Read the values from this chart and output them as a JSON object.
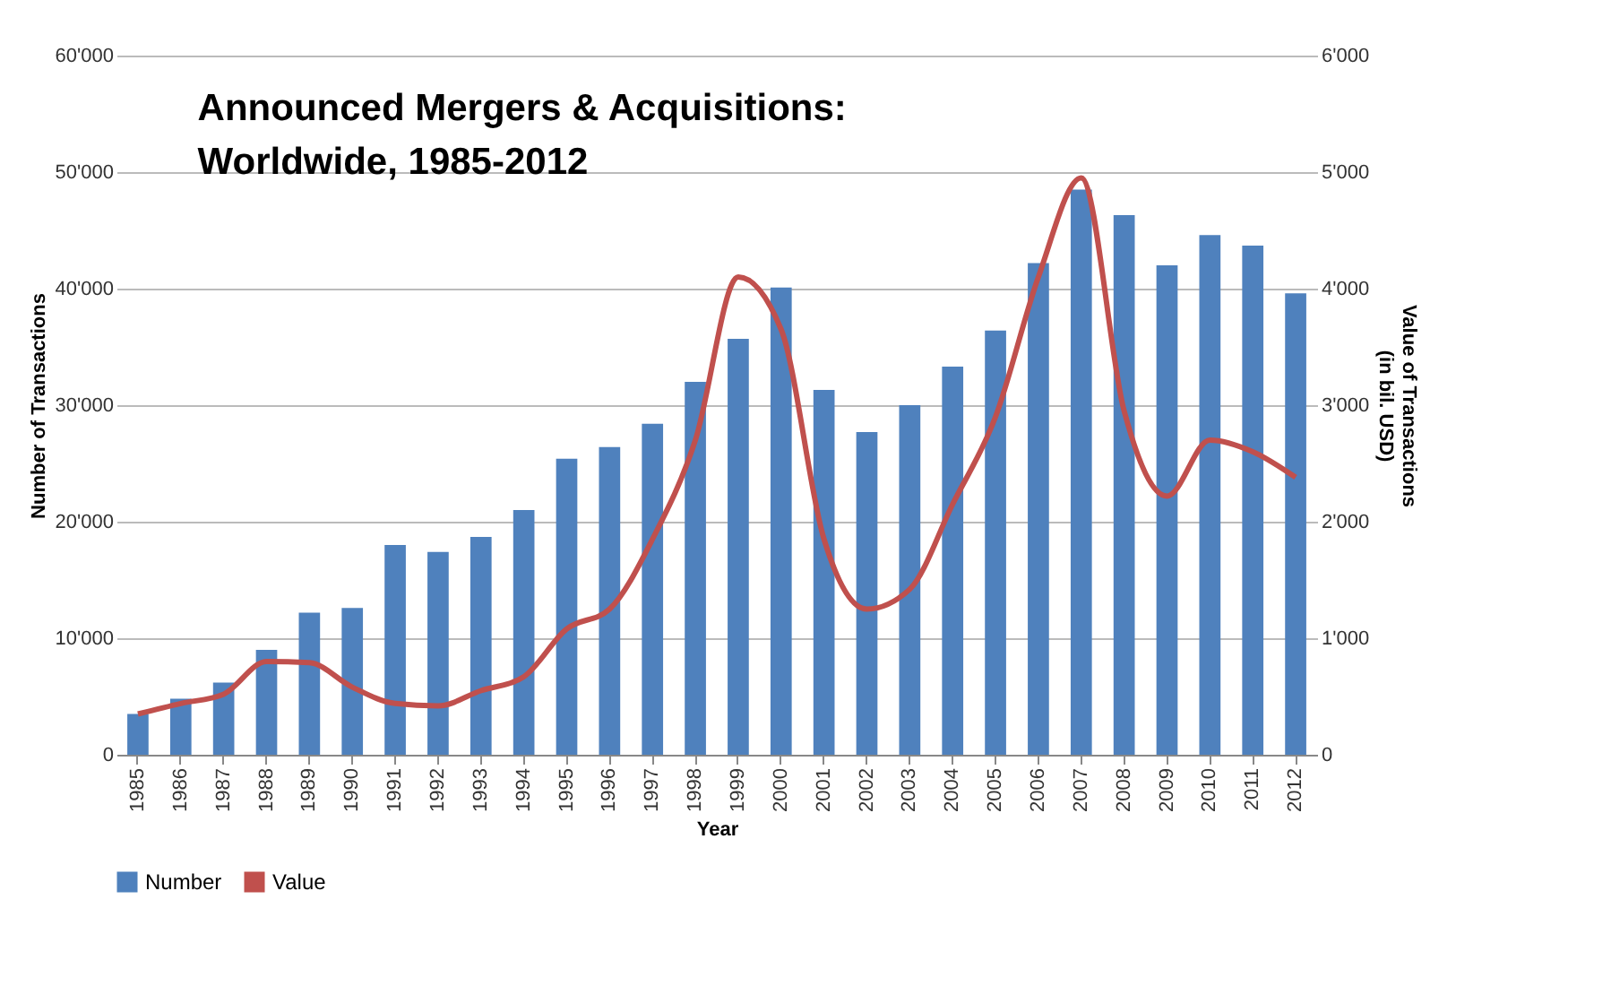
{
  "chart_data": {
    "type": "bar",
    "title": "Announced Mergers & Acquisitions:\nWorldwide, 1985-2012",
    "xlabel": "Year",
    "ylabel": "Number of Transactions",
    "y2label": "Value of Transactions\n(in bil. USD)",
    "categories": [
      "1985",
      "1986",
      "1987",
      "1988",
      "1989",
      "1990",
      "1991",
      "1992",
      "1993",
      "1994",
      "1995",
      "1996",
      "1997",
      "1998",
      "1999",
      "2000",
      "2001",
      "2002",
      "2003",
      "2004",
      "2005",
      "2006",
      "2007",
      "2008",
      "2009",
      "2010",
      "2011",
      "2012"
    ],
    "series": [
      {
        "name": "Number",
        "color": "#4f81bd",
        "values": [
          3500,
          4800,
          6200,
          9000,
          12200,
          12600,
          18000,
          17400,
          18700,
          21000,
          25400,
          26400,
          28400,
          32000,
          35700,
          40100,
          31300,
          27700,
          30000,
          33300,
          36400,
          42200,
          48500,
          46300,
          42000,
          44600,
          43700,
          39600
        ]
      },
      {
        "name": "Value",
        "type": "line",
        "axis": "y2",
        "color": "#c0504d",
        "values": [
          350,
          440,
          520,
          800,
          790,
          580,
          440,
          420,
          550,
          670,
          1080,
          1250,
          1850,
          2700,
          4100,
          3650,
          1850,
          1250,
          1420,
          2150,
          2900,
          4100,
          4950,
          2950,
          2220,
          2700,
          2600,
          2380
        ]
      }
    ],
    "ylim": [
      0,
      60000
    ],
    "yticks": [
      0,
      {
        "value": 10000,
        "label": "10'000"
      },
      {
        "value": 20000,
        "label": "20'000"
      },
      {
        "value": 30000,
        "label": "30'000"
      },
      {
        "value": 40000,
        "label": "40'000"
      },
      {
        "value": 50000,
        "label": "50'000"
      },
      {
        "value": 60000,
        "label": "60'000"
      }
    ],
    "y2lim": [
      0,
      6000
    ],
    "y2ticks": [
      0,
      {
        "value": 1000,
        "label": "1'000"
      },
      {
        "value": 2000,
        "label": "2'000"
      },
      {
        "value": 3000,
        "label": "3'000"
      },
      {
        "value": 4000,
        "label": "4'000"
      },
      {
        "value": 5000,
        "label": "5'000"
      },
      {
        "value": 6000,
        "label": "6'000"
      }
    ],
    "grid": "y",
    "legend": "bottom"
  }
}
